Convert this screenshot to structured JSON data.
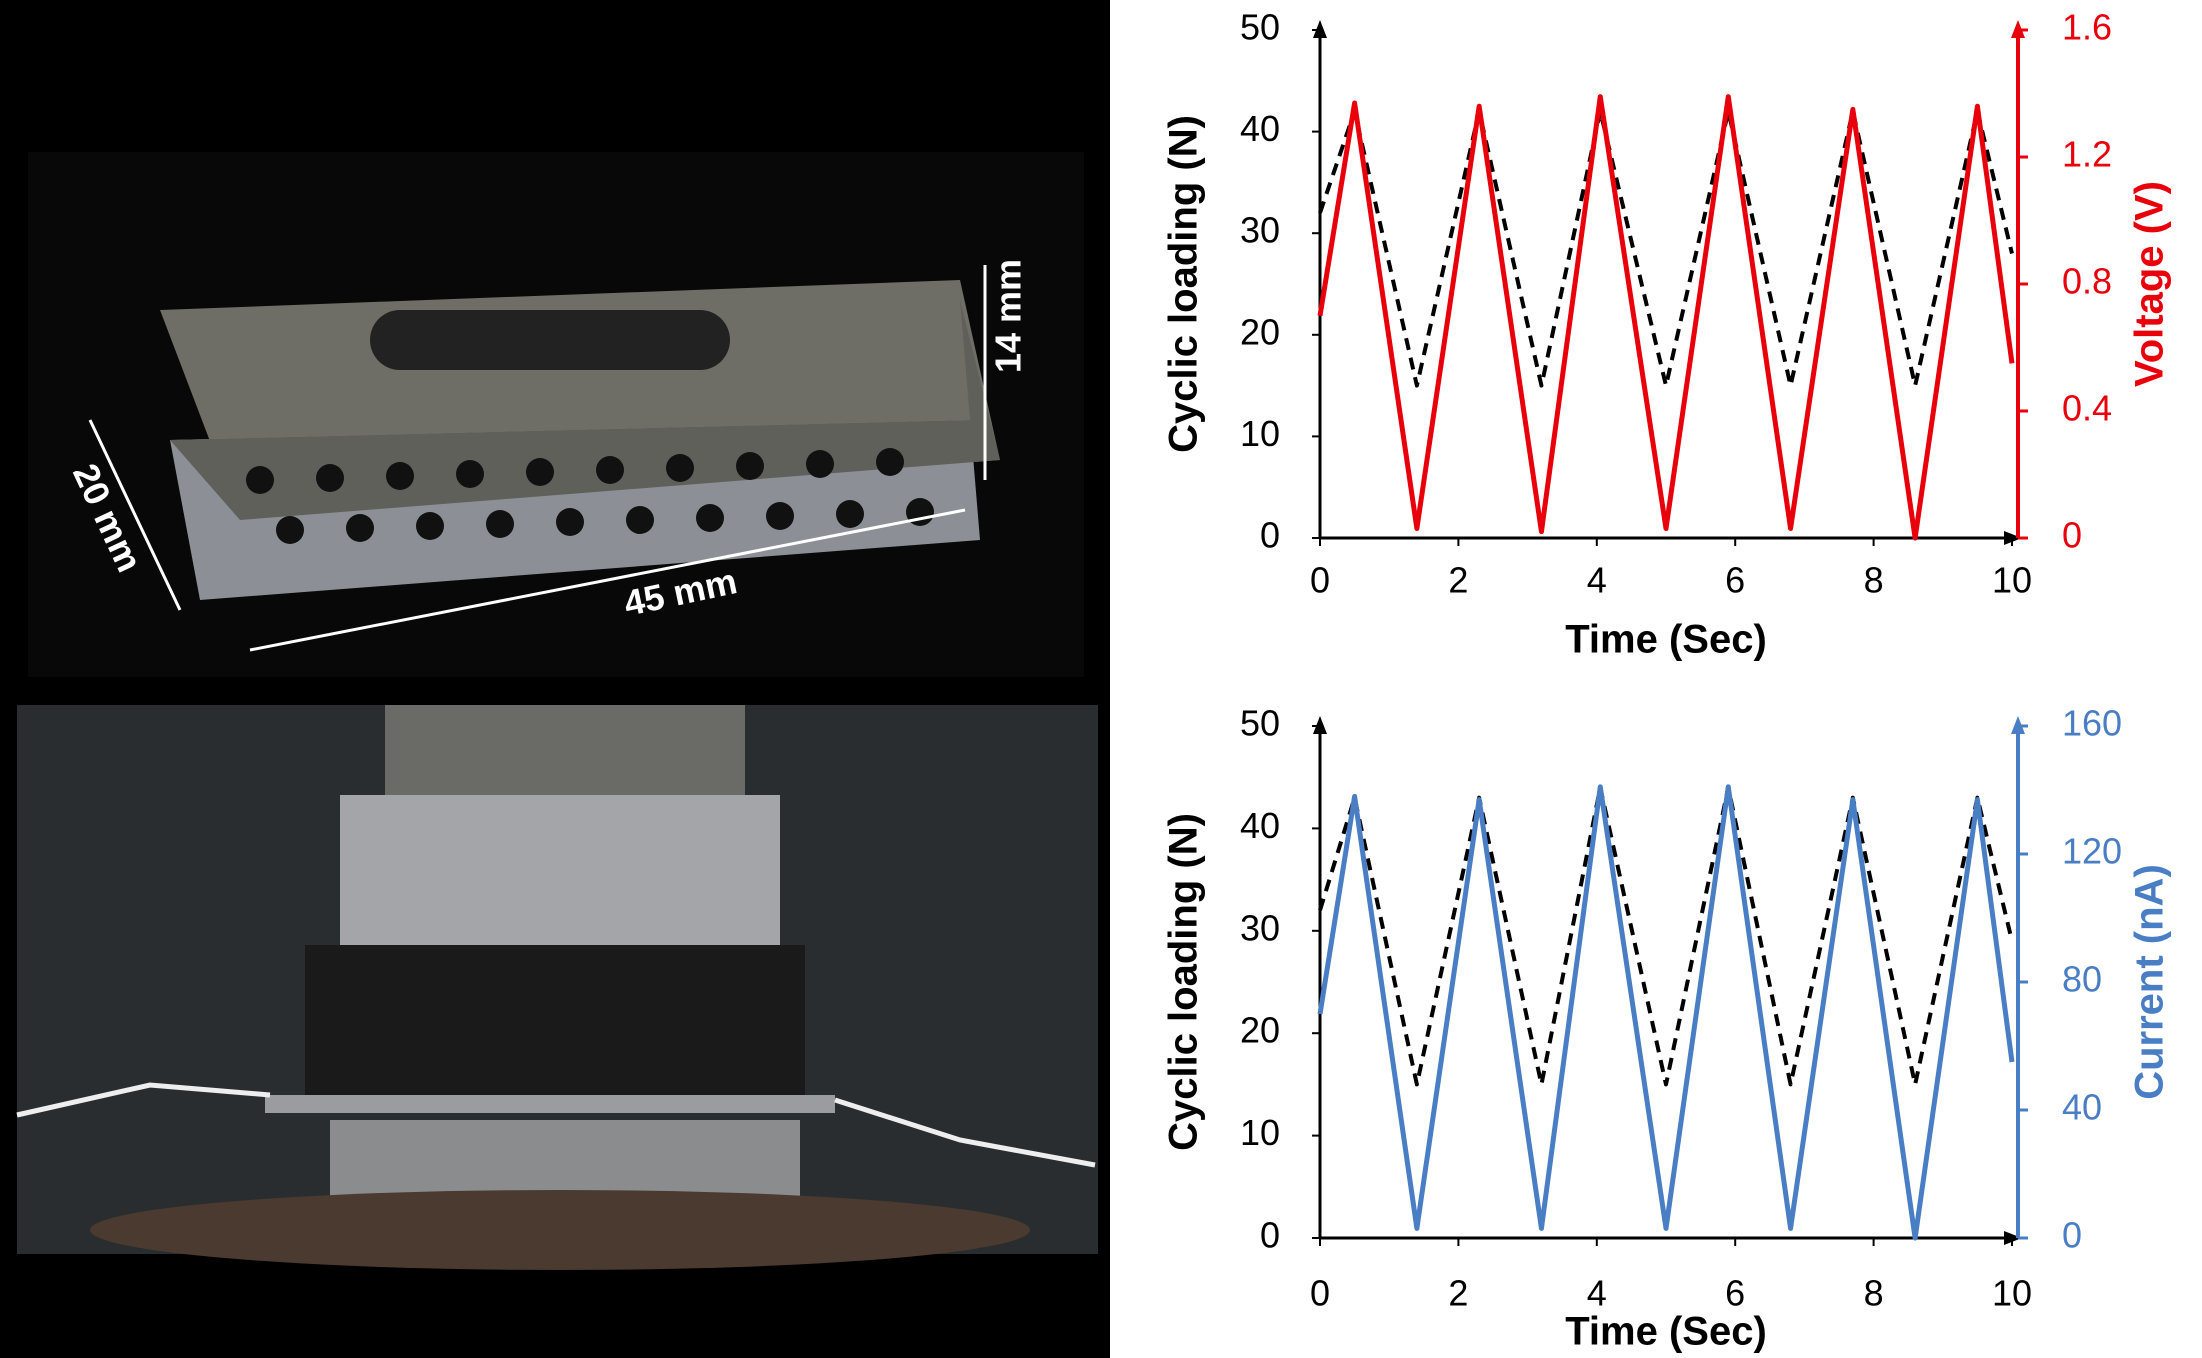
{
  "photo_labels": [
    "14 mm",
    "20 mm",
    "45 mm"
  ],
  "chart_data": [
    {
      "type": "line",
      "xlabel": "Time (Sec)",
      "ylabel": "Cyclic loading (N)",
      "y2label": "Voltage (V)",
      "y2color": "#e8000b",
      "x": [
        0,
        0.5,
        1.4,
        2.3,
        3.2,
        4.05,
        5.0,
        5.9,
        6.8,
        7.7,
        8.6,
        9.5,
        10
      ],
      "series": [
        {
          "color": "#000000",
          "line_style": "dashed",
          "values": [
            32,
            42,
            15,
            42,
            15,
            42,
            15,
            42,
            15,
            42,
            15,
            42,
            28
          ]
        },
        {
          "color": "#e8000b",
          "line_style": "solid",
          "axis": "y2",
          "values": [
            0.7,
            1.37,
            0.03,
            1.36,
            0.02,
            1.39,
            0.03,
            1.39,
            0.03,
            1.35,
            0.0,
            1.36,
            0.55
          ]
        }
      ],
      "xlim": [
        0,
        10
      ],
      "xticks": [
        0,
        2,
        4,
        6,
        8,
        10
      ],
      "ylim": [
        0,
        50
      ],
      "yticks": [
        0,
        10,
        20,
        30,
        40,
        50
      ],
      "y2lim": [
        0,
        1.6
      ],
      "y2ticks": [
        0,
        0.4,
        0.8,
        1.2,
        1.6
      ]
    },
    {
      "type": "line",
      "xlabel": "Time (Sec)",
      "ylabel": "Cyclic loading (N)",
      "y2label": "Current (nA)",
      "y2color": "#4a7ec4",
      "x": [
        0,
        0.5,
        1.4,
        2.3,
        3.2,
        4.05,
        5.0,
        5.9,
        6.8,
        7.7,
        8.6,
        9.5,
        10
      ],
      "series": [
        {
          "color": "#000000",
          "line_style": "dashed",
          "values": [
            32,
            43,
            15,
            43,
            15,
            44,
            15,
            44,
            15,
            43,
            15,
            43,
            29
          ]
        },
        {
          "color": "#4a7ec4",
          "line_style": "solid",
          "axis": "y2",
          "values": [
            70,
            138,
            3,
            137,
            3,
            141,
            3,
            141,
            3,
            137,
            0,
            137,
            55
          ]
        }
      ],
      "xlim": [
        0,
        10
      ],
      "xticks": [
        0,
        2,
        4,
        6,
        8,
        10
      ],
      "ylim": [
        0,
        50
      ],
      "yticks": [
        0,
        10,
        20,
        30,
        40,
        50
      ],
      "y2lim": [
        0,
        160
      ],
      "y2ticks": [
        0,
        40,
        80,
        120,
        160
      ]
    }
  ]
}
